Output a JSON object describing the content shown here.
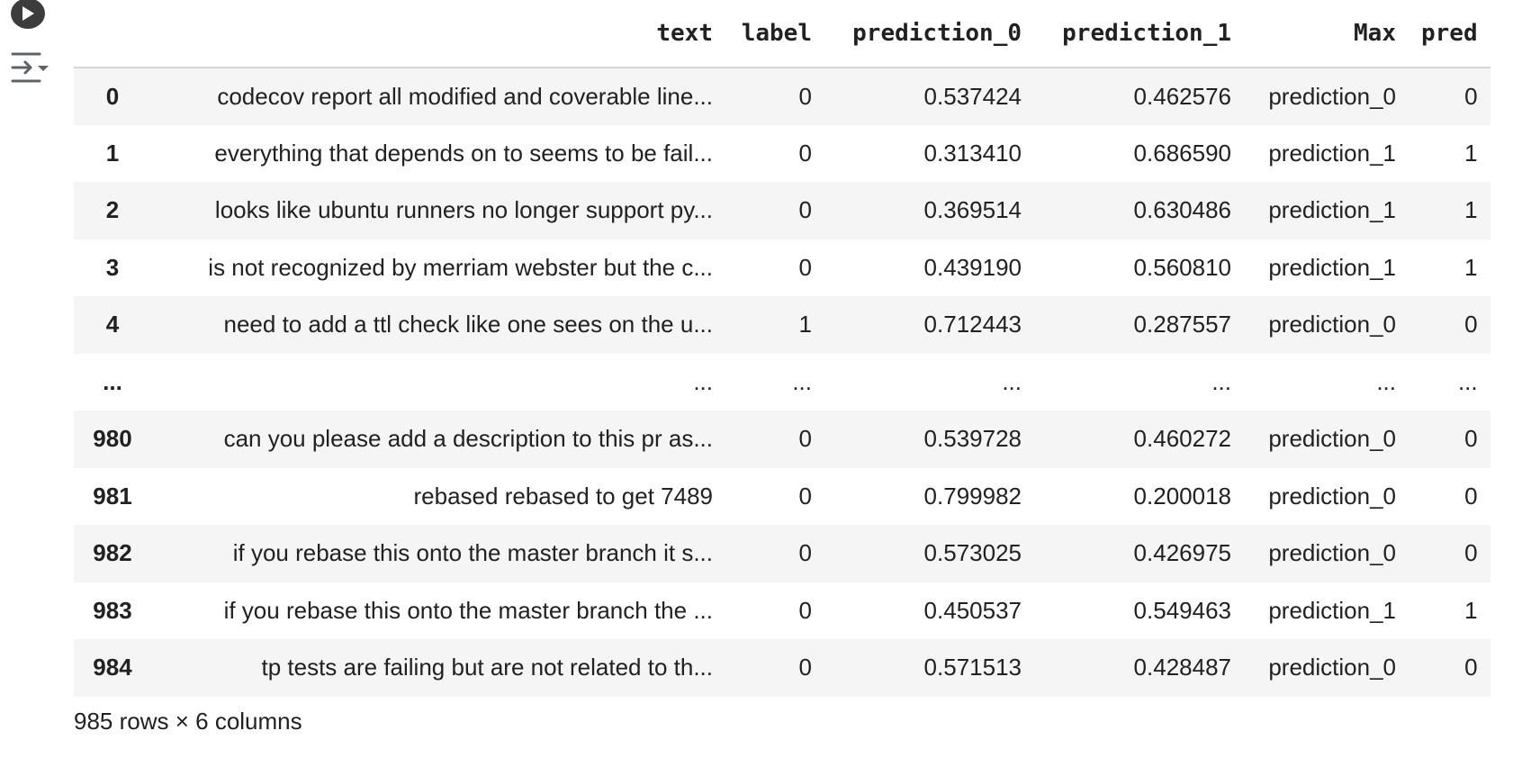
{
  "dataframe": {
    "columns": [
      "",
      "text",
      "label",
      "prediction_0",
      "prediction_1",
      "Max",
      "pred"
    ],
    "rows": [
      {
        "index": "0",
        "text": "codecov report all modified and coverable line...",
        "label": "0",
        "prediction_0": "0.537424",
        "prediction_1": "0.462576",
        "max": "prediction_0",
        "pred": "0"
      },
      {
        "index": "1",
        "text": "everything that depends on to seems to be fail...",
        "label": "0",
        "prediction_0": "0.313410",
        "prediction_1": "0.686590",
        "max": "prediction_1",
        "pred": "1"
      },
      {
        "index": "2",
        "text": "looks like ubuntu runners no longer support py...",
        "label": "0",
        "prediction_0": "0.369514",
        "prediction_1": "0.630486",
        "max": "prediction_1",
        "pred": "1"
      },
      {
        "index": "3",
        "text": "is not recognized by merriam webster but the c...",
        "label": "0",
        "prediction_0": "0.439190",
        "prediction_1": "0.560810",
        "max": "prediction_1",
        "pred": "1"
      },
      {
        "index": "4",
        "text": "need to add a ttl check like one sees on the u...",
        "label": "1",
        "prediction_0": "0.712443",
        "prediction_1": "0.287557",
        "max": "prediction_0",
        "pred": "0"
      },
      {
        "index": "...",
        "text": "...",
        "label": "...",
        "prediction_0": "...",
        "prediction_1": "...",
        "max": "...",
        "pred": "..."
      },
      {
        "index": "980",
        "text": "can you please add a description to this pr as...",
        "label": "0",
        "prediction_0": "0.539728",
        "prediction_1": "0.460272",
        "max": "prediction_0",
        "pred": "0"
      },
      {
        "index": "981",
        "text": "rebased rebased to get 7489",
        "label": "0",
        "prediction_0": "0.799982",
        "prediction_1": "0.200018",
        "max": "prediction_0",
        "pred": "0"
      },
      {
        "index": "982",
        "text": "if you rebase this onto the master branch it s...",
        "label": "0",
        "prediction_0": "0.573025",
        "prediction_1": "0.426975",
        "max": "prediction_0",
        "pred": "0"
      },
      {
        "index": "983",
        "text": "if you rebase this onto the master branch the ...",
        "label": "0",
        "prediction_0": "0.450537",
        "prediction_1": "0.549463",
        "max": "prediction_1",
        "pred": "1"
      },
      {
        "index": "984",
        "text": "tp tests are failing but are not related to th...",
        "label": "0",
        "prediction_0": "0.571513",
        "prediction_1": "0.428487",
        "max": "prediction_0",
        "pred": "0"
      }
    ],
    "shape_text": "985 rows × 6 columns"
  },
  "icons": {
    "run": "play-icon",
    "output_toggle": "output-actions-icon"
  },
  "colors": {
    "stripe": "#f5f5f5",
    "run_button": "#3c3c3c",
    "border": "#d6d6d6"
  }
}
